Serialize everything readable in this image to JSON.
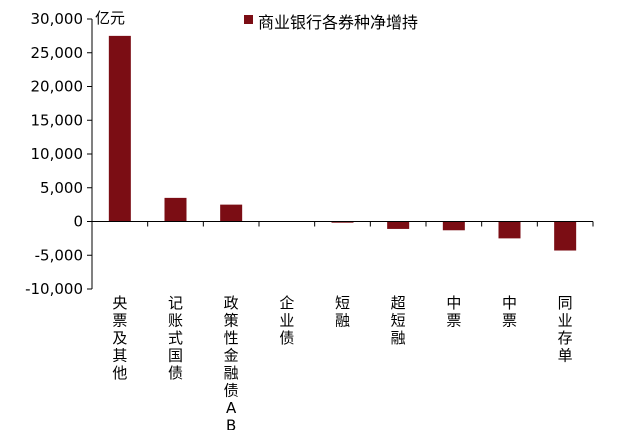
{
  "chart_data": {
    "type": "bar",
    "unit_label": "亿元",
    "categories": [
      "央票及其他",
      "记账式国债",
      "政策性金融债ABC",
      "企业债",
      "短融",
      "超短融",
      "中票",
      "中票",
      "同业存单"
    ],
    "series": [
      {
        "name": "商业银行各券种净增持",
        "values": [
          27500,
          3500,
          2500,
          0,
          -150,
          -1100,
          -1300,
          -2500,
          -4300
        ]
      }
    ],
    "ylim": [
      -10000,
      30000
    ],
    "ytick_values": [
      30000,
      25000,
      20000,
      15000,
      10000,
      5000,
      0,
      -5000,
      -10000
    ],
    "ytick_labels": [
      "30,000",
      "25,000",
      "20,000",
      "15,000",
      "10,000",
      "5,000",
      "0",
      "-5,000",
      "-10,000"
    ],
    "legend_position": "top",
    "grid": false,
    "bar_color": "#7b0d14"
  }
}
